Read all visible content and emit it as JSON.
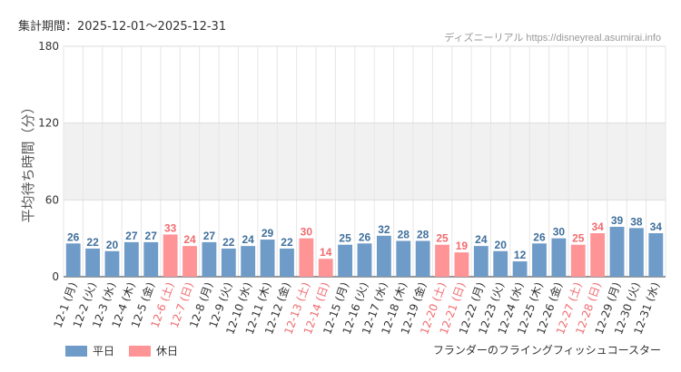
{
  "header": {
    "period": "集計期間：2025-12-01〜2025-12-31",
    "source": "ディズニーリアル https://disneyreal.asumirai.info"
  },
  "attraction": "フランダーのフライングフィッシュコースター",
  "colors": {
    "weekday": "#6e9bc8",
    "holiday": "#ff9497",
    "weekday_label": "#3f6f9c",
    "holiday_label": "#f06b6f",
    "band": "#f1f1f1",
    "grid": "#e6e6e6"
  },
  "chart_data": {
    "type": "bar",
    "ylabel": "平均待ち時間（分）",
    "ylim": [
      0,
      180
    ],
    "yticks": [
      0,
      60,
      120,
      180
    ],
    "shaded_band": [
      60,
      120
    ],
    "categories": [
      "12-1 (月)",
      "12-2 (火)",
      "12-3 (水)",
      "12-4 (木)",
      "12-5 (金)",
      "12-6 (土)",
      "12-7 (日)",
      "12-8 (月)",
      "12-9 (火)",
      "12-10 (水)",
      "12-11 (木)",
      "12-12 (金)",
      "12-13 (土)",
      "12-14 (日)",
      "12-15 (月)",
      "12-16 (火)",
      "12-17 (水)",
      "12-18 (木)",
      "12-19 (金)",
      "12-20 (土)",
      "12-21 (日)",
      "12-22 (月)",
      "12-23 (火)",
      "12-24 (水)",
      "12-25 (木)",
      "12-26 (金)",
      "12-27 (土)",
      "12-28 (日)",
      "12-29 (月)",
      "12-30 (火)",
      "12-31 (水)"
    ],
    "values": [
      26,
      22,
      20,
      27,
      27,
      33,
      24,
      27,
      22,
      24,
      29,
      22,
      30,
      14,
      25,
      26,
      32,
      28,
      28,
      25,
      19,
      24,
      20,
      12,
      26,
      30,
      25,
      34,
      39,
      38,
      34
    ],
    "holiday": [
      false,
      false,
      false,
      false,
      false,
      true,
      true,
      false,
      false,
      false,
      false,
      false,
      true,
      true,
      false,
      false,
      false,
      false,
      false,
      true,
      true,
      false,
      false,
      false,
      false,
      false,
      true,
      true,
      false,
      false,
      false
    ],
    "legend": [
      "平日",
      "休日"
    ],
    "legend_position": "bottom-left",
    "grid": true
  }
}
